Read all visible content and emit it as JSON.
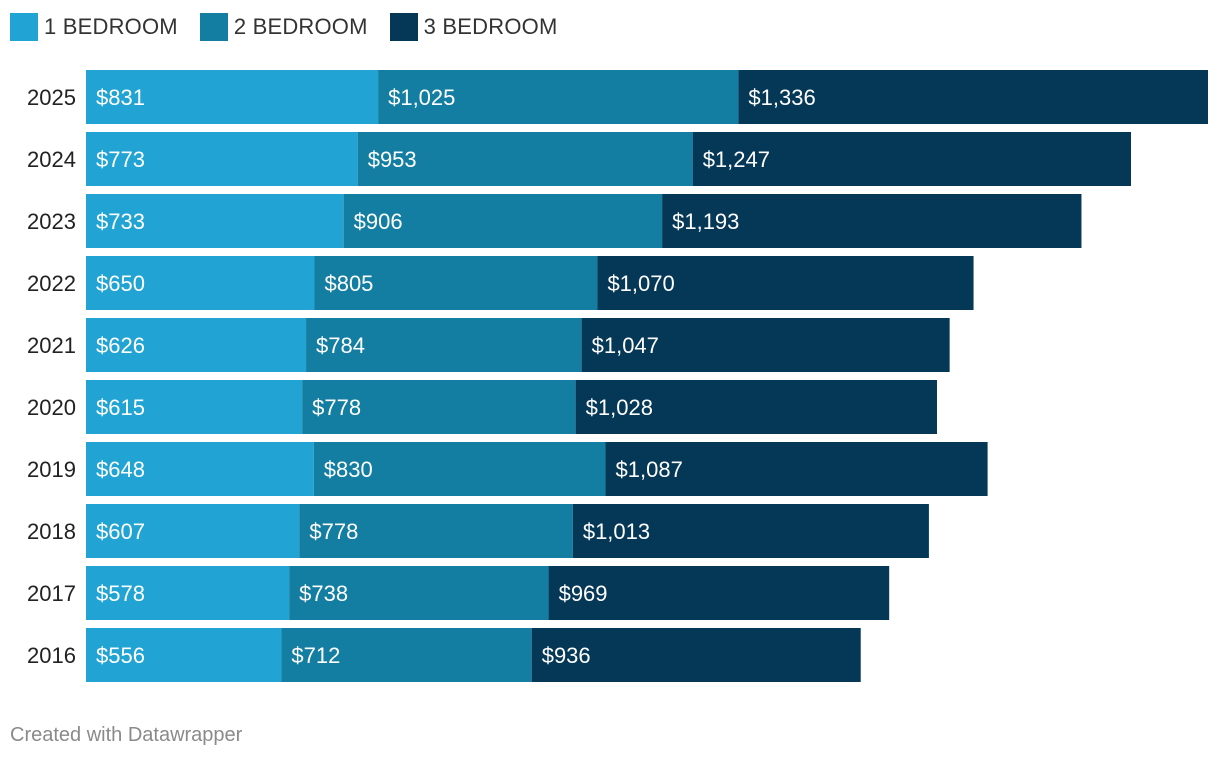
{
  "chart_data": {
    "type": "bar",
    "orientation": "horizontal",
    "stacked": true,
    "categories": [
      "2025",
      "2024",
      "2023",
      "2022",
      "2021",
      "2020",
      "2019",
      "2018",
      "2017",
      "2016"
    ],
    "series": [
      {
        "name": "1 BEDROOM",
        "color": "#21a3d4",
        "values": [
          831,
          773,
          733,
          650,
          626,
          615,
          648,
          607,
          578,
          556
        ]
      },
      {
        "name": "2 BEDROOM",
        "color": "#137ea1",
        "values": [
          1025,
          953,
          906,
          805,
          784,
          778,
          830,
          778,
          738,
          712
        ]
      },
      {
        "name": "3 BEDROOM",
        "color": "#053756",
        "values": [
          1336,
          1247,
          1193,
          1070,
          1047,
          1028,
          1087,
          1013,
          969,
          936
        ]
      }
    ],
    "value_prefix": "$",
    "xlim": [
      0,
      3192
    ],
    "legend": "top-left",
    "grid": false,
    "title": "",
    "xlabel": "",
    "ylabel": ""
  },
  "footer": {
    "credit": "Created with Datawrapper"
  }
}
